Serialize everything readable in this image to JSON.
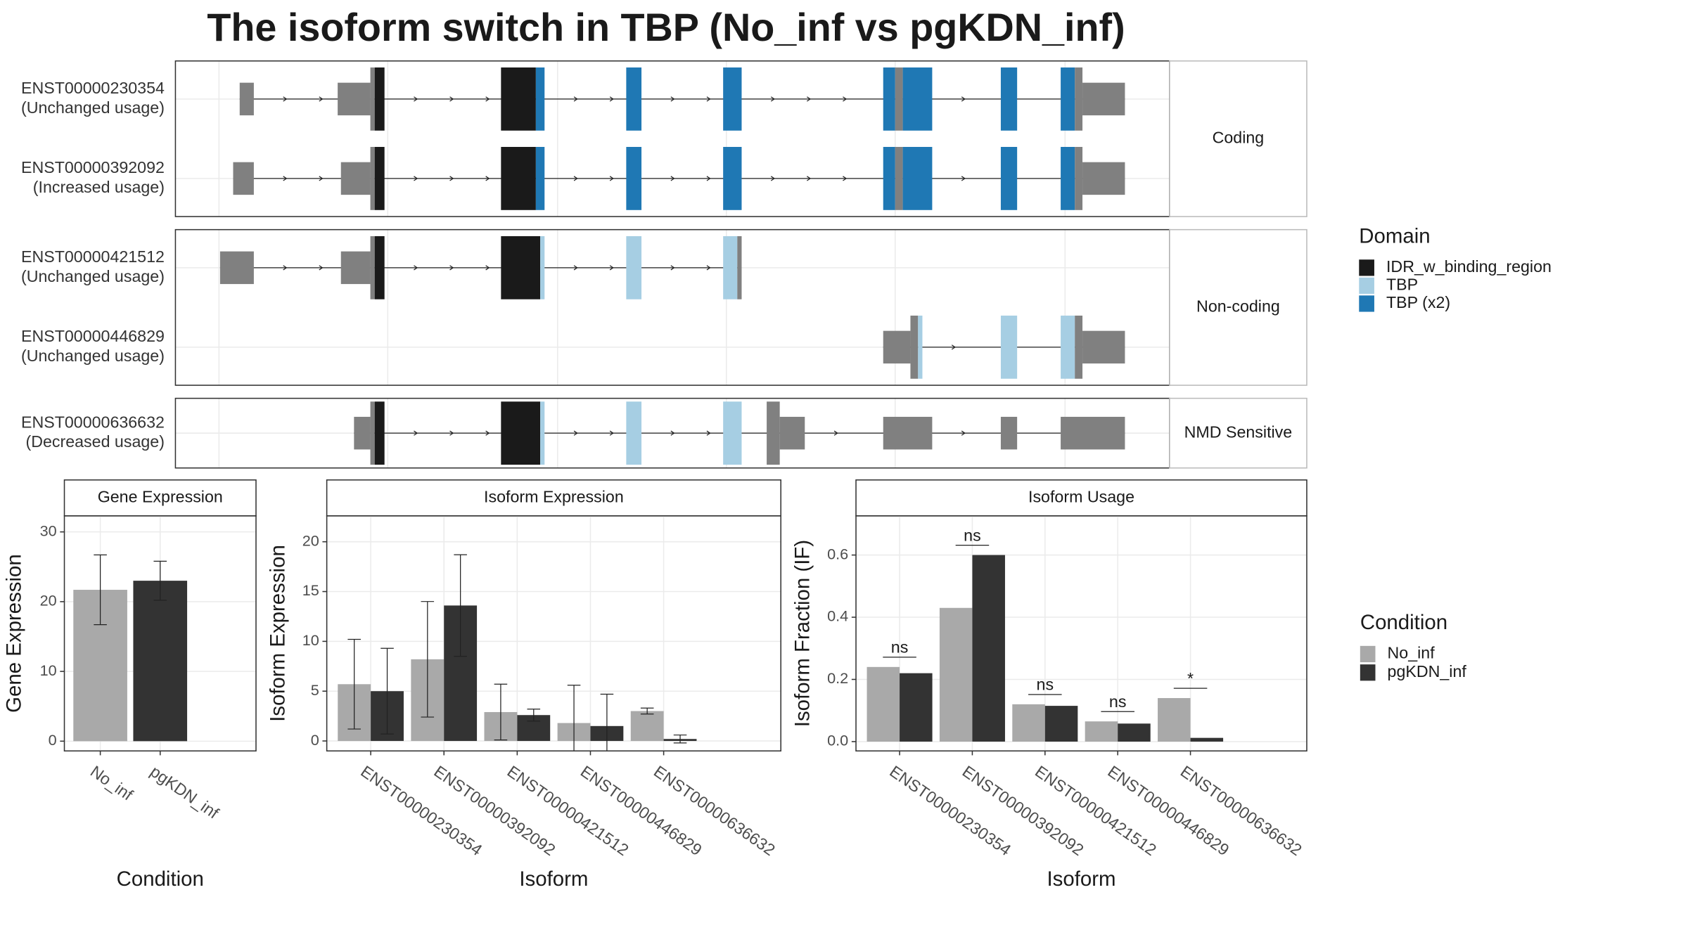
{
  "title": "The isoform switch in TBP (No_inf vs pgKDN_inf)",
  "chart_data": [
    {
      "type": "gene-structure",
      "groups": [
        {
          "name": "Coding",
          "transcripts": [
            {
              "id": "ENST00000230354",
              "usage": "(Unchanged usage)"
            },
            {
              "id": "ENST00000392092",
              "usage": "(Increased usage)"
            }
          ]
        },
        {
          "name": "Non-coding",
          "transcripts": [
            {
              "id": "ENST00000421512",
              "usage": "(Unchanged usage)"
            },
            {
              "id": "ENST00000446829",
              "usage": "(Unchanged usage)"
            }
          ]
        },
        {
          "name": "NMD Sensitive",
          "transcripts": [
            {
              "id": "ENST00000636632",
              "usage": "(Decreased usage)"
            }
          ]
        }
      ],
      "legend_title": "Domain",
      "domains": [
        {
          "name": "IDR_w_binding_region",
          "color": "#1a1a1a"
        },
        {
          "name": "TBP",
          "color": "#a6cee3"
        },
        {
          "name": "TBP (x2)",
          "color": "#1f78b4"
        }
      ],
      "exon_color": "#808080"
    },
    {
      "type": "bar",
      "title": "Gene Expression",
      "ylabel": "Gene Expression",
      "xlabel": "Condition",
      "categories": [
        "No_inf",
        "pgKDN_inf"
      ],
      "values": [
        21.7,
        23.0
      ],
      "errors": [
        5.0,
        2.8
      ],
      "colors": [
        "#a9a9a9",
        "#333333"
      ],
      "ylim": [
        -1.4,
        32.3
      ],
      "yticks": [
        0,
        10,
        20,
        30
      ],
      "grid": true
    },
    {
      "type": "grouped-bar",
      "title": "Isoform Expression",
      "ylabel": "Isoform Expression",
      "xlabel": "Isoform",
      "categories": [
        "ENST00000230354",
        "ENST00000392092",
        "ENST00000421512",
        "ENST00000446829",
        "ENST00000636632"
      ],
      "series": [
        {
          "name": "No_inf",
          "color": "#a9a9a9",
          "values": [
            5.7,
            8.2,
            2.9,
            1.8,
            3.0
          ],
          "errors": [
            4.5,
            5.8,
            2.8,
            3.8,
            0.3
          ]
        },
        {
          "name": "pgKDN_inf",
          "color": "#333333",
          "values": [
            5.0,
            13.6,
            2.6,
            1.5,
            0.2
          ],
          "errors": [
            4.3,
            5.1,
            0.6,
            3.2,
            0.4
          ]
        }
      ],
      "ylim": [
        -1.0,
        22.6
      ],
      "yticks": [
        0,
        5,
        10,
        15,
        20
      ],
      "grid": true,
      "legend_title": "Condition"
    },
    {
      "type": "grouped-bar",
      "title": "Isoform Usage",
      "ylabel": "Isoform Fraction (IF)",
      "xlabel": "Isoform",
      "categories": [
        "ENST00000230354",
        "ENST00000392092",
        "ENST00000421512",
        "ENST00000446829",
        "ENST00000636632"
      ],
      "series": [
        {
          "name": "No_inf",
          "color": "#a9a9a9",
          "values": [
            0.24,
            0.43,
            0.12,
            0.065,
            0.14
          ]
        },
        {
          "name": "pgKDN_inf",
          "color": "#333333",
          "values": [
            0.22,
            0.6,
            0.115,
            0.058,
            0.012
          ]
        }
      ],
      "significance": [
        "ns",
        "ns",
        "ns",
        "ns",
        "*"
      ],
      "ylim": [
        -0.03,
        0.726
      ],
      "yticks": [
        {
          "value": 0,
          "label": "0.0"
        },
        {
          "value": 0.2,
          "label": "0.2"
        },
        {
          "value": 0.4,
          "label": "0.4"
        },
        {
          "value": 0.6,
          "label": "0.6"
        }
      ],
      "grid": true
    }
  ]
}
